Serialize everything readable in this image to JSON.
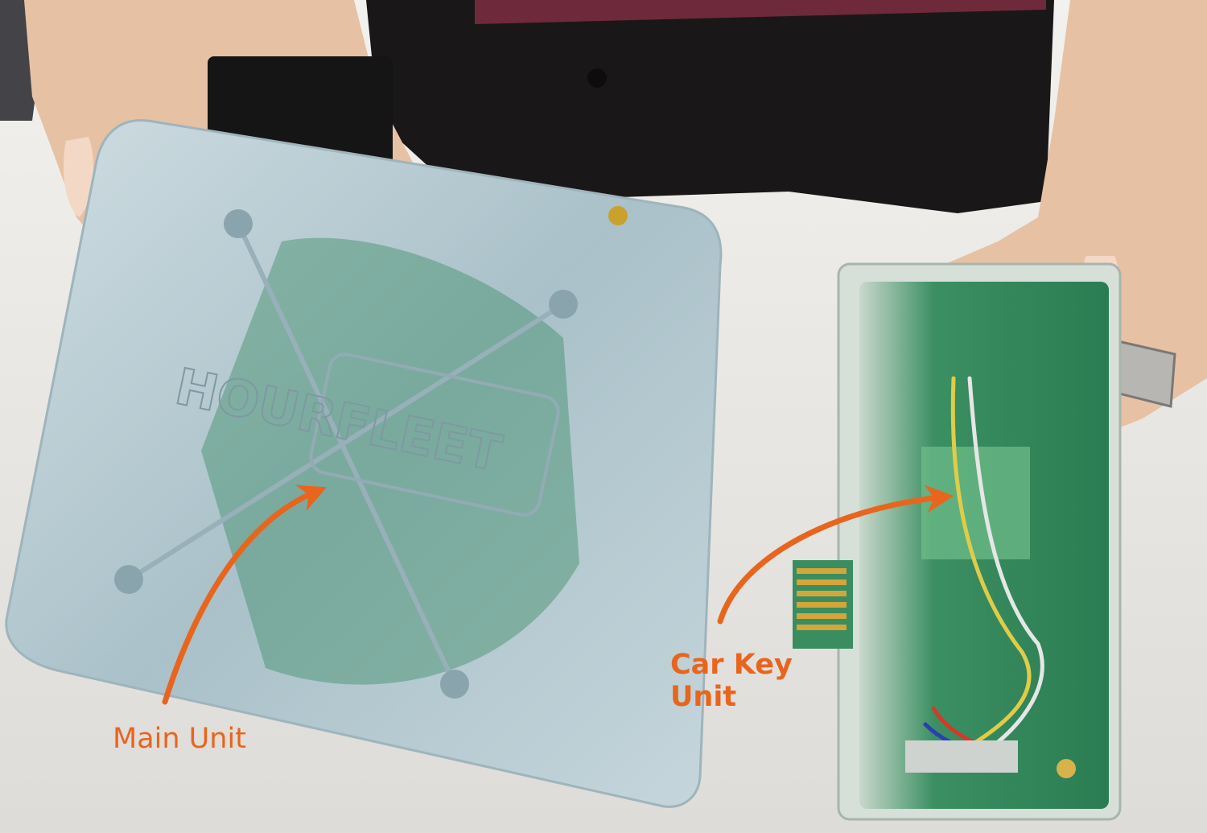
{
  "labels": {
    "main_unit": "Main Unit",
    "car_key_line1": "Car Key",
    "car_key_line2": "Unit"
  },
  "device": {
    "embossed_brand": "HOURFLEET"
  },
  "colors": {
    "annotation": "#e8651e",
    "pcb_green": "#2f8a5c",
    "case_blue": "#b9cdd6",
    "table": "#ecebe8",
    "fabric": "#1a1718",
    "skin": "#e7c1a4"
  }
}
